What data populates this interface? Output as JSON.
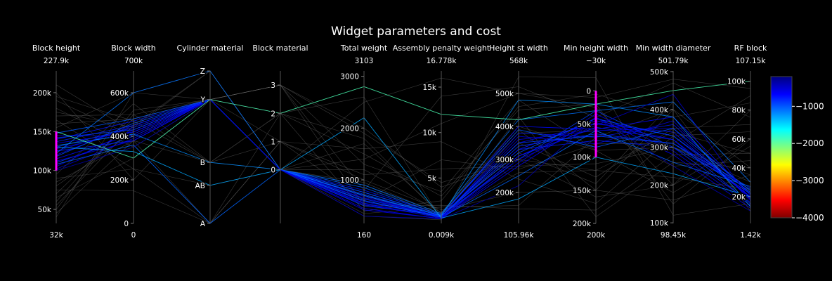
{
  "chart_data": {
    "type": "parallel_coordinates",
    "title": "Widget parameters and cost",
    "line_color": {
      "colorscale": "Jet",
      "reversed": true,
      "range": [
        -4000,
        -200
      ],
      "colorbar_ticks": [
        {
          "value": -1000,
          "label": "−1000"
        },
        {
          "value": -2000,
          "label": "−2000"
        },
        {
          "value": -3000,
          "label": "−3000"
        },
        {
          "value": -4000,
          "label": "−4000"
        }
      ],
      "colorbar_colors": [
        "#00007f",
        "#0000ff",
        "#007fff",
        "#00ffff",
        "#7fff7f",
        "#ffff00",
        "#ff7f00",
        "#ff0000",
        "#7f0000"
      ]
    },
    "unselected_color": "#6a6a6a",
    "constraint_color": "#ff00ff",
    "axes": [
      {
        "id": "block_height",
        "label": "Block height",
        "range": [
          32000,
          227900
        ],
        "min_label": "32k",
        "max_label": "227.9k",
        "ticks": [
          {
            "v": 50000,
            "t": "50k"
          },
          {
            "v": 100000,
            "t": "100k"
          },
          {
            "v": 150000,
            "t": "150k"
          },
          {
            "v": 200000,
            "t": "200k"
          }
        ],
        "constraint": [
          100000,
          150000
        ]
      },
      {
        "id": "block_width",
        "label": "Block width",
        "range": [
          0,
          700000
        ],
        "min_label": "0",
        "max_label": "700k",
        "ticks": [
          {
            "v": 0,
            "t": "0"
          },
          {
            "v": 200000,
            "t": "200k"
          },
          {
            "v": 400000,
            "t": "400k"
          },
          {
            "v": 600000,
            "t": "600k"
          }
        ]
      },
      {
        "id": "cylinder_material",
        "label": "Cylinder material",
        "range": [
          0,
          4
        ],
        "min_label": "",
        "max_label": "",
        "ticks": [
          {
            "v": 0,
            "t": "A"
          },
          {
            "v": 1,
            "t": "AB"
          },
          {
            "v": 1.6,
            "t": "B"
          },
          {
            "v": 3.25,
            "t": "Y"
          },
          {
            "v": 4,
            "t": "Z"
          }
        ]
      },
      {
        "id": "block_material",
        "label": "Block material",
        "range": [
          -1.9,
          3.5
        ],
        "min_label": "",
        "max_label": "",
        "ticks": [
          {
            "v": 0,
            "t": "0"
          },
          {
            "v": 1,
            "t": "1"
          },
          {
            "v": 2,
            "t": "2"
          },
          {
            "v": 3,
            "t": "3"
          }
        ]
      },
      {
        "id": "total_weight",
        "label": "Total weight",
        "range": [
          160,
          3103
        ],
        "min_label": "160",
        "max_label": "3103",
        "ticks": [
          {
            "v": 1000,
            "t": "1000"
          },
          {
            "v": 2000,
            "t": "2000"
          },
          {
            "v": 3000,
            "t": "3000"
          }
        ]
      },
      {
        "id": "assembly_penalty_weight",
        "label": "Assembly penalty weight",
        "range": [
          9,
          16778
        ],
        "min_label": "0.009k",
        "max_label": "16.778k",
        "ticks": [
          {
            "v": 5000,
            "t": "5k"
          },
          {
            "v": 10000,
            "t": "10k"
          },
          {
            "v": 15000,
            "t": "15k"
          }
        ]
      },
      {
        "id": "height_st_width",
        "label": "Height st width",
        "range": [
          105960,
          568000
        ],
        "min_label": "105.96k",
        "max_label": "568k",
        "ticks": [
          {
            "v": 200000,
            "t": "200k"
          },
          {
            "v": 300000,
            "t": "300k"
          },
          {
            "v": 400000,
            "t": "400k"
          },
          {
            "v": 500000,
            "t": "500k"
          }
        ]
      },
      {
        "id": "min_height_width",
        "label": "Min height width",
        "range": [
          200000,
          -30000
        ],
        "min_label": "200k",
        "max_label": "−30k",
        "ticks": [
          {
            "v": 0,
            "t": "0"
          },
          {
            "v": 50000,
            "t": "50k"
          },
          {
            "v": 100000,
            "t": "100k"
          },
          {
            "v": 150000,
            "t": "150k"
          },
          {
            "v": 200000,
            "t": "200k"
          }
        ],
        "constraint": [
          0,
          100000
        ]
      },
      {
        "id": "min_width_diameter",
        "label": "Min width diameter",
        "range": [
          98450,
          501790
        ],
        "min_label": "98.45k",
        "max_label": "501.79k",
        "ticks": [
          {
            "v": 100000,
            "t": "100k"
          },
          {
            "v": 200000,
            "t": "200k"
          },
          {
            "v": 300000,
            "t": "300k"
          },
          {
            "v": 400000,
            "t": "400k"
          },
          {
            "v": 500000,
            "t": "500k"
          }
        ]
      },
      {
        "id": "rf_block",
        "label": "RF block",
        "range": [
          1420,
          107150
        ],
        "min_label": "1.42k",
        "max_label": "107.15k",
        "ticks": [
          {
            "v": 20000,
            "t": "20k"
          },
          {
            "v": 40000,
            "t": "40k"
          },
          {
            "v": 60000,
            "t": "60k"
          },
          {
            "v": 80000,
            "t": "80k"
          },
          {
            "v": 100000,
            "t": "100k"
          }
        ]
      }
    ],
    "records": [
      [
        120000,
        450000,
        3.25,
        0,
        600,
        800,
        330000,
        45000,
        330000,
        20000,
        -700
      ],
      [
        135000,
        420000,
        3.25,
        0,
        700,
        700,
        360000,
        60000,
        350000,
        18000,
        -600
      ],
      [
        110000,
        400000,
        3.25,
        0,
        500,
        900,
        300000,
        30000,
        300000,
        25000,
        -900
      ],
      [
        125000,
        380000,
        3.25,
        0,
        550,
        600,
        310000,
        55000,
        320000,
        15000,
        -800
      ],
      [
        140000,
        470000,
        3.25,
        0,
        800,
        1000,
        380000,
        70000,
        360000,
        22000,
        -750
      ],
      [
        105000,
        430000,
        3.25,
        0,
        450,
        500,
        280000,
        40000,
        280000,
        12000,
        -650
      ],
      [
        115000,
        410000,
        3.25,
        0,
        650,
        750,
        350000,
        50000,
        340000,
        19000,
        -700
      ],
      [
        130000,
        440000,
        3.25,
        0,
        720,
        820,
        340000,
        65000,
        310000,
        26000,
        -850
      ],
      [
        145000,
        400000,
        3.25,
        0,
        680,
        650,
        370000,
        80000,
        370000,
        17000,
        -550
      ],
      [
        102000,
        390000,
        3.25,
        0,
        420,
        550,
        290000,
        35000,
        290000,
        14000,
        -600
      ],
      [
        118000,
        460000,
        3.25,
        0,
        760,
        880,
        320000,
        42000,
        330000,
        23000,
        -950
      ],
      [
        128000,
        420000,
        3.25,
        0,
        580,
        720,
        400000,
        58000,
        380000,
        21000,
        -700
      ],
      [
        137000,
        450000,
        3.25,
        0,
        630,
        780,
        330000,
        75000,
        300000,
        16000,
        -800
      ],
      [
        112000,
        380000,
        3.25,
        0,
        520,
        680,
        310000,
        48000,
        320000,
        20000,
        -650
      ],
      [
        148000,
        480000,
        3.25,
        0,
        850,
        950,
        390000,
        85000,
        350000,
        24000,
        -1000
      ],
      [
        122000,
        600000,
        4,
        0,
        900,
        1100,
        420000,
        30000,
        420000,
        30000,
        -1100
      ],
      [
        132000,
        410000,
        1.6,
        0,
        700,
        850,
        480000,
        20000,
        380000,
        13000,
        -1200
      ],
      [
        108000,
        360000,
        0,
        0,
        600,
        700,
        250000,
        60000,
        260000,
        27000,
        -1050
      ],
      [
        125000,
        440000,
        3.25,
        0,
        540,
        620,
        300000,
        52000,
        440000,
        18000,
        -500
      ],
      [
        142000,
        430000,
        3.25,
        0,
        760,
        800,
        350000,
        68000,
        310000,
        22000,
        -900
      ],
      [
        100000,
        350000,
        3.25,
        0,
        300,
        500,
        220000,
        40000,
        250000,
        10000,
        -400
      ],
      [
        160000,
        480000,
        3.25,
        0,
        1200,
        1200,
        400000,
        90000,
        300000,
        30000,
        -1500
      ],
      [
        90000,
        250000,
        1,
        0,
        900,
        800,
        260000,
        120000,
        220000,
        25000,
        -1400
      ],
      [
        200000,
        200000,
        3.25,
        3,
        2000,
        4000,
        300000,
        160000,
        200000,
        80000,
        -1800
      ],
      [
        60000,
        500000,
        1.6,
        2,
        1500,
        3000,
        450000,
        20000,
        150000,
        60000,
        -1600
      ],
      [
        180000,
        350000,
        3.25,
        1,
        1000,
        1500,
        200000,
        150000,
        400000,
        40000,
        -1300
      ],
      [
        40000,
        600000,
        4,
        0,
        2500,
        16000,
        500000,
        10000,
        480000,
        95000,
        -1700
      ],
      [
        170000,
        500000,
        3.25,
        3,
        500,
        2000,
        150000,
        180000,
        280000,
        50000,
        -1400
      ],
      [
        75000,
        150000,
        0,
        2,
        1800,
        800,
        350000,
        130000,
        350000,
        70000,
        -1500
      ],
      [
        210000,
        420000,
        3.25,
        0,
        300,
        400,
        550000,
        -20000,
        120000,
        15000,
        -1200
      ],
      [
        85000,
        380000,
        1.6,
        1,
        1100,
        6000,
        280000,
        110000,
        300000,
        35000,
        -1350
      ],
      [
        150000,
        300000,
        3.25,
        2,
        2800,
        12000,
        420000,
        20000,
        450000,
        100000,
        -1900
      ],
      [
        55000,
        450000,
        4,
        0,
        700,
        500,
        380000,
        60000,
        250000,
        45000,
        -1250
      ],
      [
        190000,
        400000,
        3.25,
        3,
        1300,
        3500,
        480000,
        90000,
        180000,
        55000,
        -1650
      ],
      [
        95000,
        550000,
        1.6,
        0,
        950,
        1000,
        320000,
        140000,
        420000,
        30000,
        -1450
      ],
      [
        165000,
        250000,
        0,
        1,
        1600,
        9000,
        240000,
        170000,
        330000,
        65000,
        -1550
      ],
      [
        70000,
        480000,
        3.25,
        2,
        400,
        2500,
        460000,
        5000,
        380000,
        85000,
        -1750
      ],
      [
        130000,
        330000,
        1,
        0,
        2200,
        600,
        180000,
        100000,
        230000,
        20000,
        -1300
      ],
      [
        80000,
        420000,
        3.25,
        3,
        800,
        14000,
        520000,
        40000,
        470000,
        75000,
        -1850
      ],
      [
        155000,
        600000,
        3.25,
        0,
        1700,
        1100,
        390000,
        150000,
        160000,
        35000,
        -1400
      ],
      [
        45000,
        380000,
        0,
        1,
        600,
        7000,
        270000,
        80000,
        310000,
        90000,
        -1600
      ],
      [
        195000,
        470000,
        1.6,
        2,
        2600,
        500,
        430000,
        190000,
        260000,
        40000,
        -1950
      ],
      [
        65000,
        300000,
        3.25,
        0,
        350,
        1800,
        160000,
        70000,
        400000,
        10000,
        -1200
      ],
      [
        175000,
        440000,
        4,
        0,
        1400,
        11000,
        500000,
        25000,
        200000,
        60000,
        -1700
      ],
      [
        50000,
        520000,
        3.25,
        3,
        1900,
        4500,
        300000,
        120000,
        340000,
        50000,
        -1500
      ]
    ]
  }
}
